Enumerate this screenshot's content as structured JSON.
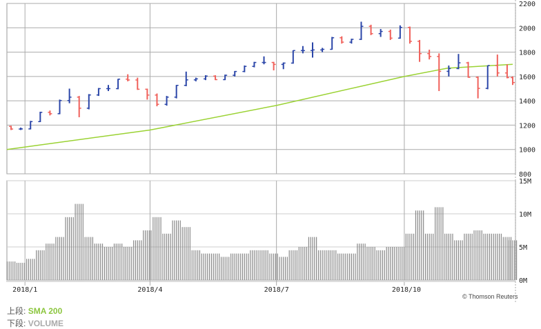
{
  "chart_data": [
    {
      "type": "ohlc",
      "yticks": [
        800,
        1000,
        1200,
        1400,
        1600,
        1800,
        2000,
        2200
      ],
      "ylim": [
        800,
        2200
      ],
      "xlim": [
        "2017-12-19",
        "2018-12-20"
      ],
      "xticks": [
        {
          "date": "2018-01-01",
          "label": "2018/1"
        },
        {
          "date": "2018-04-01",
          "label": "2018/4"
        },
        {
          "date": "2018-07-01",
          "label": "2018/7"
        },
        {
          "date": "2018-10-01",
          "label": "2018/10"
        }
      ],
      "grid": true,
      "colors": {
        "up": "#2a45a8",
        "down": "#f0605a",
        "sma": "#9ad232"
      },
      "dates": [
        "2017-12-22",
        "2017-12-29",
        "2018-01-05",
        "2018-01-12",
        "2018-01-19",
        "2018-01-26",
        "2018-02-02",
        "2018-02-09",
        "2018-02-16",
        "2018-02-23",
        "2018-03-02",
        "2018-03-09",
        "2018-03-16",
        "2018-03-23",
        "2018-03-30",
        "2018-04-06",
        "2018-04-13",
        "2018-04-20",
        "2018-04-27",
        "2018-05-04",
        "2018-05-11",
        "2018-05-18",
        "2018-05-25",
        "2018-06-01",
        "2018-06-08",
        "2018-06-15",
        "2018-06-22",
        "2018-06-29",
        "2018-07-06",
        "2018-07-13",
        "2018-07-20",
        "2018-07-27",
        "2018-08-03",
        "2018-08-10",
        "2018-08-17",
        "2018-08-24",
        "2018-08-31",
        "2018-09-07",
        "2018-09-14",
        "2018-09-21",
        "2018-09-28",
        "2018-10-05",
        "2018-10-12",
        "2018-10-19",
        "2018-10-26",
        "2018-11-02",
        "2018-11-09",
        "2018-11-16",
        "2018-11-23",
        "2018-11-30",
        "2018-12-07",
        "2018-12-14",
        "2018-12-18"
      ],
      "ohlc": [
        [
          1190,
          1195,
          1160,
          1168
        ],
        [
          1168,
          1180,
          1160,
          1169
        ],
        [
          1169,
          1235,
          1165,
          1229
        ],
        [
          1229,
          1310,
          1225,
          1305
        ],
        [
          1305,
          1320,
          1280,
          1294
        ],
        [
          1294,
          1410,
          1290,
          1402
        ],
        [
          1402,
          1500,
          1380,
          1430
        ],
        [
          1430,
          1440,
          1265,
          1339
        ],
        [
          1339,
          1455,
          1330,
          1448
        ],
        [
          1448,
          1505,
          1440,
          1500
        ],
        [
          1500,
          1530,
          1480,
          1500
        ],
        [
          1500,
          1580,
          1495,
          1578
        ],
        [
          1578,
          1618,
          1560,
          1571
        ],
        [
          1571,
          1590,
          1490,
          1495
        ],
        [
          1495,
          1500,
          1410,
          1447
        ],
        [
          1447,
          1460,
          1355,
          1371
        ],
        [
          1371,
          1440,
          1360,
          1430
        ],
        [
          1430,
          1530,
          1420,
          1527
        ],
        [
          1527,
          1640,
          1520,
          1572
        ],
        [
          1572,
          1590,
          1560,
          1580
        ],
        [
          1580,
          1610,
          1570,
          1603
        ],
        [
          1603,
          1610,
          1570,
          1574
        ],
        [
          1574,
          1615,
          1570,
          1610
        ],
        [
          1610,
          1645,
          1600,
          1641
        ],
        [
          1641,
          1690,
          1635,
          1683
        ],
        [
          1683,
          1720,
          1675,
          1715
        ],
        [
          1715,
          1765,
          1700,
          1715
        ],
        [
          1715,
          1720,
          1650,
          1699
        ],
        [
          1699,
          1715,
          1660,
          1710
        ],
        [
          1710,
          1815,
          1705,
          1813
        ],
        [
          1813,
          1850,
          1790,
          1813
        ],
        [
          1813,
          1880,
          1755,
          1818
        ],
        [
          1818,
          1835,
          1800,
          1823
        ],
        [
          1823,
          1925,
          1820,
          1918
        ],
        [
          1918,
          1930,
          1870,
          1882
        ],
        [
          1882,
          1910,
          1870,
          1905
        ],
        [
          1905,
          2050,
          1900,
          2012
        ],
        [
          2012,
          2025,
          1940,
          1952
        ],
        [
          1952,
          1990,
          1925,
          1970
        ],
        [
          1970,
          1985,
          1900,
          1915
        ],
        [
          1915,
          2020,
          1910,
          2003
        ],
        [
          2003,
          2010,
          1870,
          1889
        ],
        [
          1889,
          1900,
          1720,
          1788
        ],
        [
          1788,
          1820,
          1740,
          1764
        ],
        [
          1764,
          1790,
          1480,
          1642
        ],
        [
          1642,
          1690,
          1600,
          1665
        ],
        [
          1665,
          1785,
          1660,
          1712
        ],
        [
          1712,
          1720,
          1590,
          1593
        ],
        [
          1593,
          1600,
          1420,
          1502
        ],
        [
          1502,
          1690,
          1495,
          1690
        ],
        [
          1690,
          1780,
          1600,
          1629
        ],
        [
          1629,
          1700,
          1585,
          1591
        ],
        [
          1591,
          1600,
          1530,
          1550
        ]
      ],
      "sma": {
        "name": "SMA 200",
        "dates": [
          "2017-12-19",
          "2018-04-01",
          "2018-07-01",
          "2018-10-01",
          "2018-11-01",
          "2018-12-18"
        ],
        "values": [
          1000,
          1160,
          1362,
          1600,
          1668,
          1700
        ]
      }
    },
    {
      "type": "bar",
      "yticks": [
        {
          "v": 0,
          "label": "0M"
        },
        {
          "v": 5,
          "label": "5M"
        },
        {
          "v": 10,
          "label": "10M"
        },
        {
          "v": 15,
          "label": "15M"
        }
      ],
      "ylim": [
        0,
        15
      ],
      "color": "#888888",
      "values_millions": [
        2.8,
        2.6,
        3.2,
        4.5,
        5.5,
        6.5,
        9.5,
        11.5,
        6.5,
        5.5,
        5.0,
        5.5,
        5.0,
        6.0,
        7.5,
        9.5,
        7.0,
        9.0,
        8.0,
        4.5,
        4.0,
        4.0,
        3.5,
        4.0,
        4.0,
        4.5,
        4.5,
        4.0,
        3.5,
        4.5,
        5.0,
        6.5,
        4.5,
        4.5,
        4.0,
        4.0,
        5.5,
        5.0,
        4.5,
        5.0,
        5.0,
        7.0,
        10.5,
        7.0,
        11.0,
        7.0,
        6.0,
        7.0,
        7.5,
        7.0,
        7.0,
        6.5,
        6.0
      ]
    }
  ],
  "legend": {
    "upper_label": "上段:",
    "upper_value": "SMA 200",
    "lower_label": "下段:",
    "lower_value": "VOLUME"
  },
  "credit": "© Thomson Reuters"
}
